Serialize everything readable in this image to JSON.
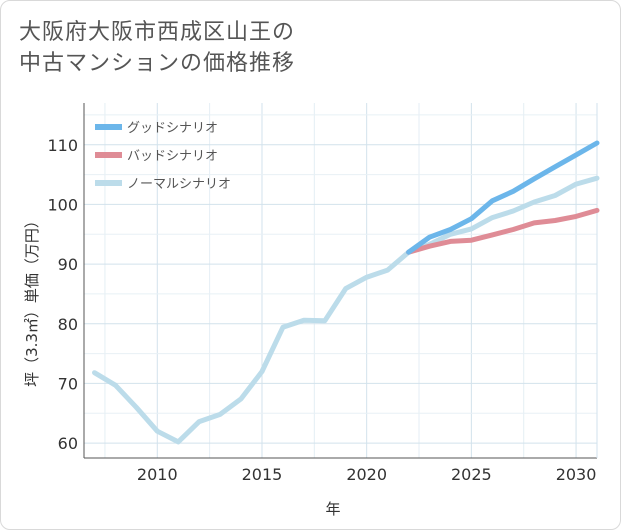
{
  "title_line1": "大阪府大阪市西成区山王の",
  "title_line2": "中古マンションの価格推移",
  "chart_data": {
    "type": "line",
    "xlabel": "年",
    "ylabel": "坪（3.3㎡）単価（万円）",
    "xlim": [
      2006.5,
      2031
    ],
    "ylim": [
      57.5,
      117
    ],
    "xticks": [
      2010,
      2015,
      2020,
      2025,
      2030
    ],
    "yticks": [
      60,
      70,
      80,
      90,
      100,
      110
    ],
    "grid": true,
    "legend_position": "top-left",
    "series": [
      {
        "name": "グッドシナリオ",
        "color": "#6cb6ea",
        "x": [
          2022,
          2023,
          2024,
          2025,
          2026,
          2027,
          2028,
          2029,
          2030,
          2031
        ],
        "y": [
          92.0,
          94.5,
          95.8,
          97.6,
          100.6,
          102.2,
          104.3,
          106.3,
          108.3,
          110.3
        ]
      },
      {
        "name": "バッドシナリオ",
        "color": "#df8c96",
        "x": [
          2022,
          2023,
          2024,
          2025,
          2026,
          2027,
          2028,
          2029,
          2030,
          2031
        ],
        "y": [
          92.0,
          93.0,
          93.8,
          94.0,
          94.9,
          95.8,
          96.9,
          97.3,
          98.0,
          99.0
        ]
      },
      {
        "name": "ノーマルシナリオ",
        "color": "#bcdcea",
        "x": [
          2007,
          2008,
          2009,
          2010,
          2011,
          2012,
          2013,
          2014,
          2015,
          2016,
          2017,
          2018,
          2019,
          2020,
          2021,
          2022,
          2023,
          2024,
          2025,
          2026,
          2027,
          2028,
          2029,
          2030,
          2031
        ],
        "y": [
          71.8,
          69.7,
          66.0,
          62.0,
          60.2,
          63.6,
          64.8,
          67.4,
          72.0,
          79.4,
          80.6,
          80.5,
          85.9,
          87.8,
          89.0,
          92.0,
          93.3,
          95.0,
          95.9,
          97.8,
          98.9,
          100.4,
          101.5,
          103.4,
          104.4
        ]
      }
    ]
  }
}
